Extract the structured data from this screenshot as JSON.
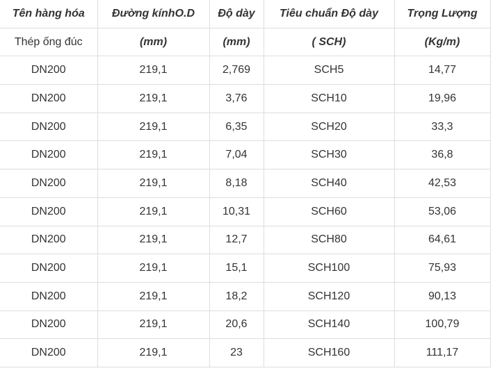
{
  "table": {
    "header": [
      "Tên hàng hóa",
      "Đường kínhO.D",
      "Độ dày",
      "Tiêu chuẩn Độ dày",
      "Trọng Lượng"
    ],
    "units": [
      "Thép ống đúc",
      "(mm)",
      "(mm)",
      "( SCH)",
      "(Kg/m)"
    ],
    "rows": [
      [
        "DN200",
        "219,1",
        "2,769",
        "SCH5",
        "14,77"
      ],
      [
        "DN200",
        "219,1",
        "3,76",
        "SCH10",
        "19,96"
      ],
      [
        "DN200",
        "219,1",
        "6,35",
        "SCH20",
        "33,3"
      ],
      [
        "DN200",
        "219,1",
        "7,04",
        "SCH30",
        "36,8"
      ],
      [
        "DN200",
        "219,1",
        "8,18",
        "SCH40",
        "42,53"
      ],
      [
        "DN200",
        "219,1",
        "10,31",
        "SCH60",
        "53,06"
      ],
      [
        "DN200",
        "219,1",
        "12,7",
        "SCH80",
        "64,61"
      ],
      [
        "DN200",
        "219,1",
        "15,1",
        "SCH100",
        "75,93"
      ],
      [
        "DN200",
        "219,1",
        "18,2",
        "SCH120",
        "90,13"
      ],
      [
        "DN200",
        "219,1",
        "20,6",
        "SCH140",
        "100,79"
      ],
      [
        "DN200",
        "219,1",
        "23",
        "SCH160",
        "111,17"
      ]
    ]
  }
}
